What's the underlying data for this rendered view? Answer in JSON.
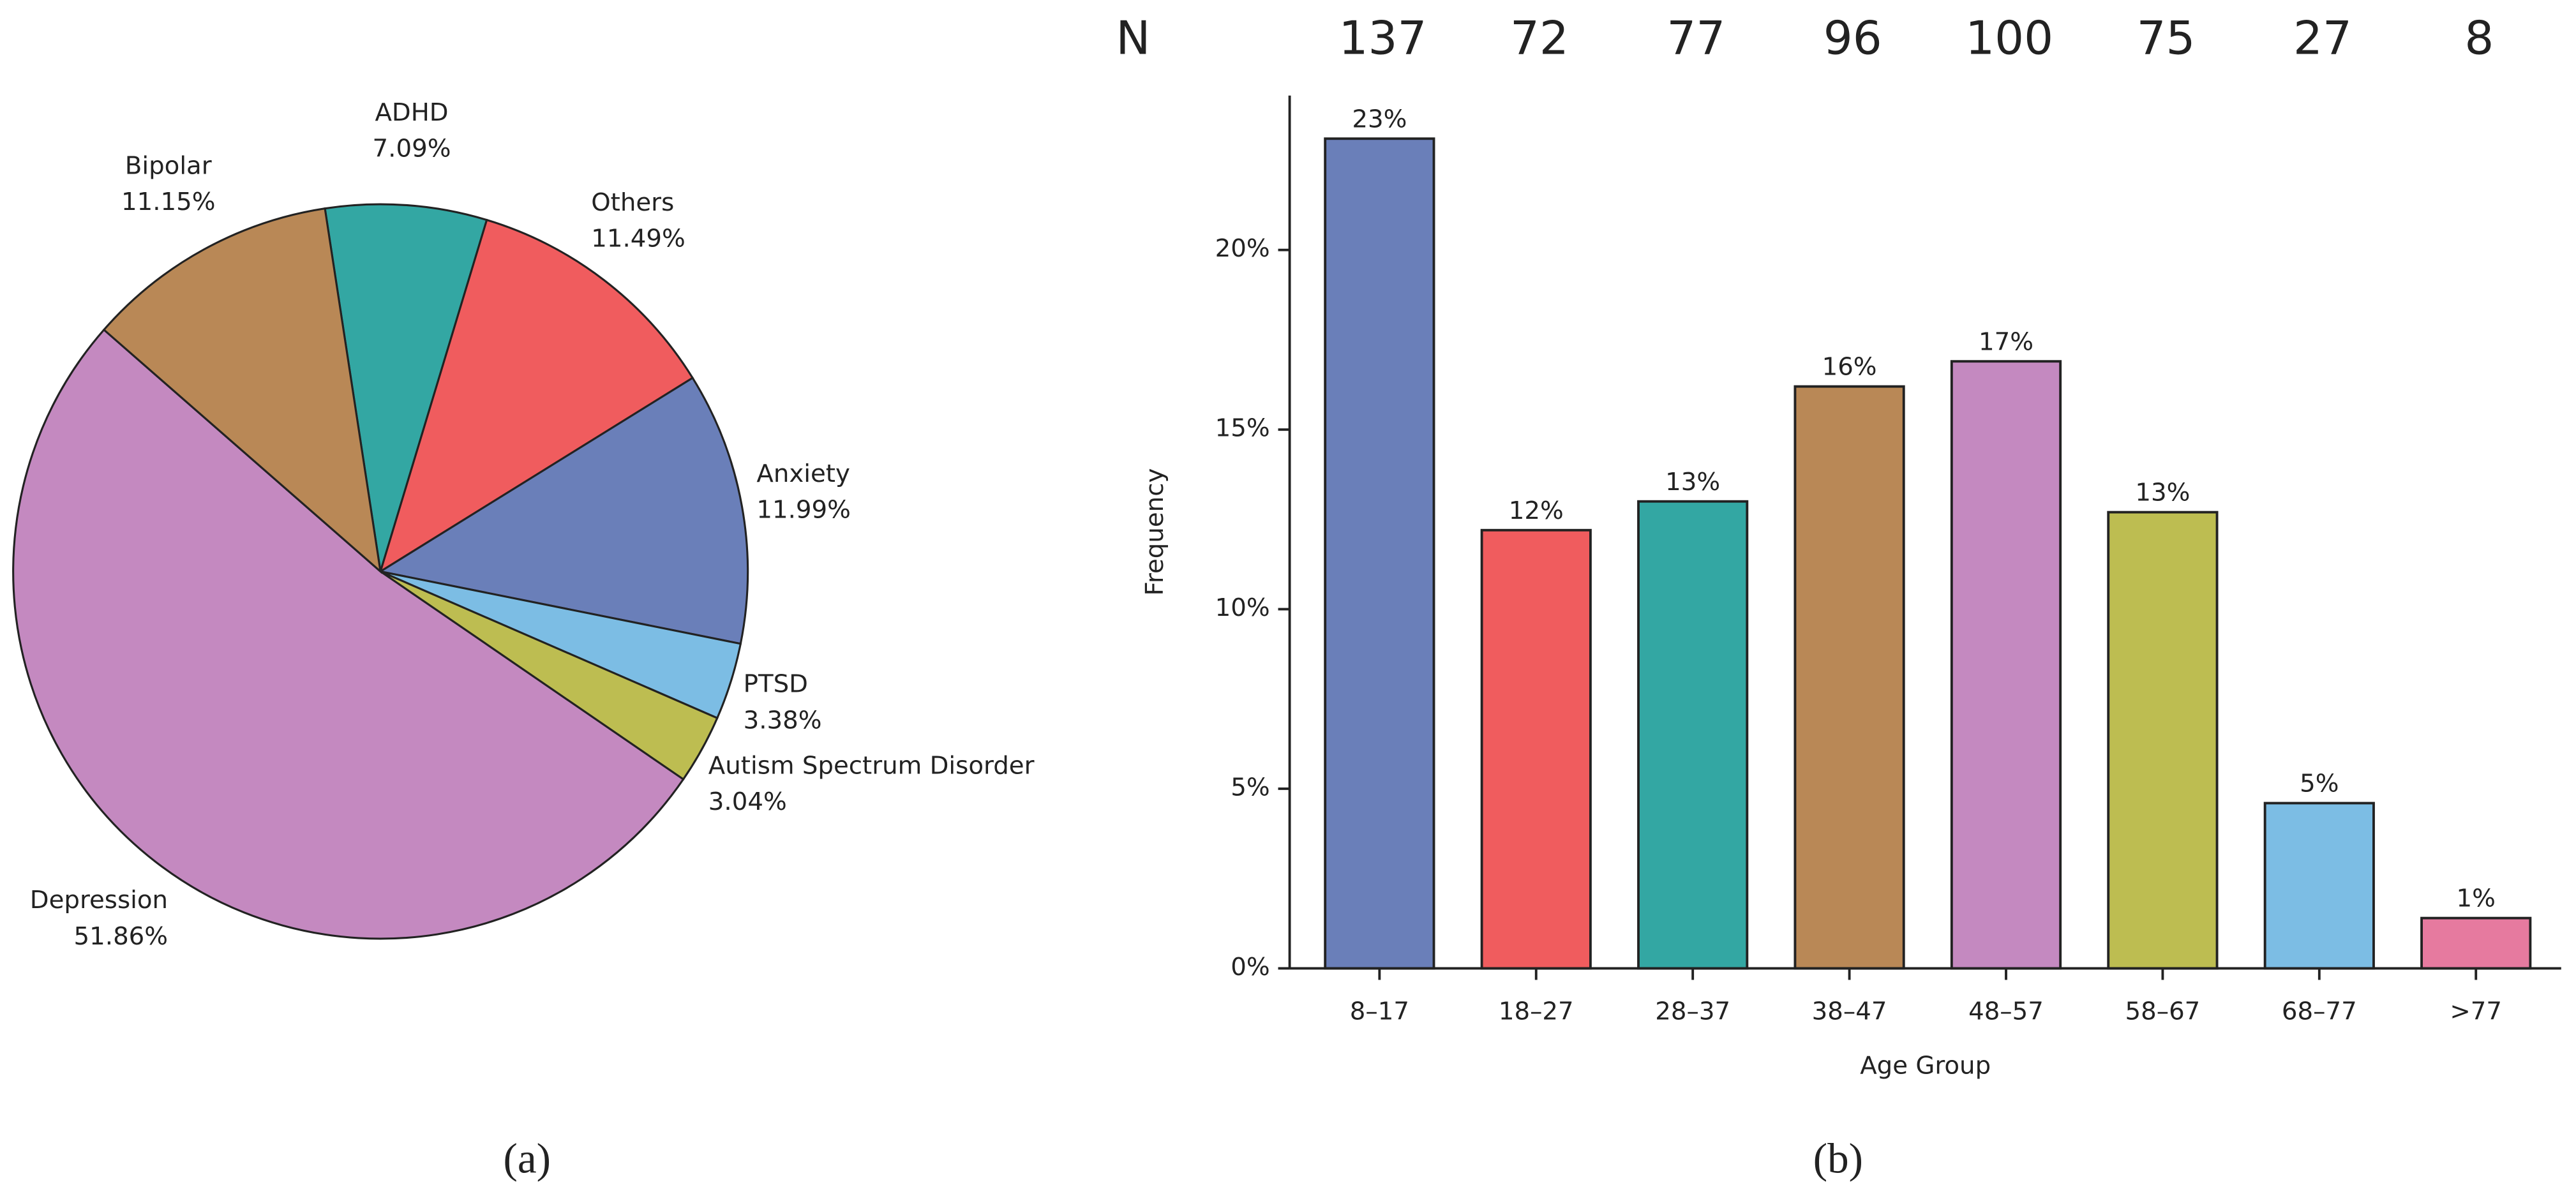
{
  "chart_data": [
    {
      "type": "pie",
      "caption": "(a)",
      "categories": [
        "ADHD",
        "Others",
        "Anxiety",
        "PTSD",
        "Autism Spectrum Disorder",
        "Depression",
        "Bipolar"
      ],
      "values": [
        7.09,
        11.49,
        11.99,
        3.38,
        3.04,
        51.86,
        11.15
      ],
      "value_labels": [
        "7.09%",
        "11.49%",
        "11.99%",
        "3.38%",
        "3.04%",
        "51.86%",
        "11.15%"
      ],
      "colors": [
        "#33a7a3",
        "#f05c5e",
        "#6a7fb9",
        "#7cbde4",
        "#bdbd51",
        "#c489c0",
        "#b98856"
      ]
    },
    {
      "type": "bar",
      "caption": "(b)",
      "xlabel": "Age Group",
      "ylabel": "Frequency",
      "categories": [
        "8–17",
        "18–27",
        "28–37",
        "38–47",
        "48–57",
        "58–67",
        "68–77",
        ">77"
      ],
      "values": [
        23.1,
        12.2,
        13.0,
        16.2,
        16.9,
        12.7,
        4.6,
        1.4
      ],
      "value_labels": [
        "23%",
        "12%",
        "13%",
        "16%",
        "17%",
        "13%",
        "5%",
        "1%"
      ],
      "colors": [
        "#6a7fb9",
        "#f05c5e",
        "#33a7a3",
        "#b98856",
        "#c489c0",
        "#bdbd51",
        "#7cbde4",
        "#e67a9f"
      ],
      "n_label": "N",
      "n_values": [
        137,
        72,
        77,
        96,
        100,
        75,
        27,
        8
      ],
      "ylim": [
        0,
        24.3
      ],
      "yticks": [
        {
          "value": 0,
          "label": "0%"
        },
        {
          "value": 5,
          "label": "5%"
        },
        {
          "value": 10,
          "label": "10%"
        },
        {
          "value": 15,
          "label": "15%"
        },
        {
          "value": 20,
          "label": "20%"
        }
      ]
    }
  ]
}
